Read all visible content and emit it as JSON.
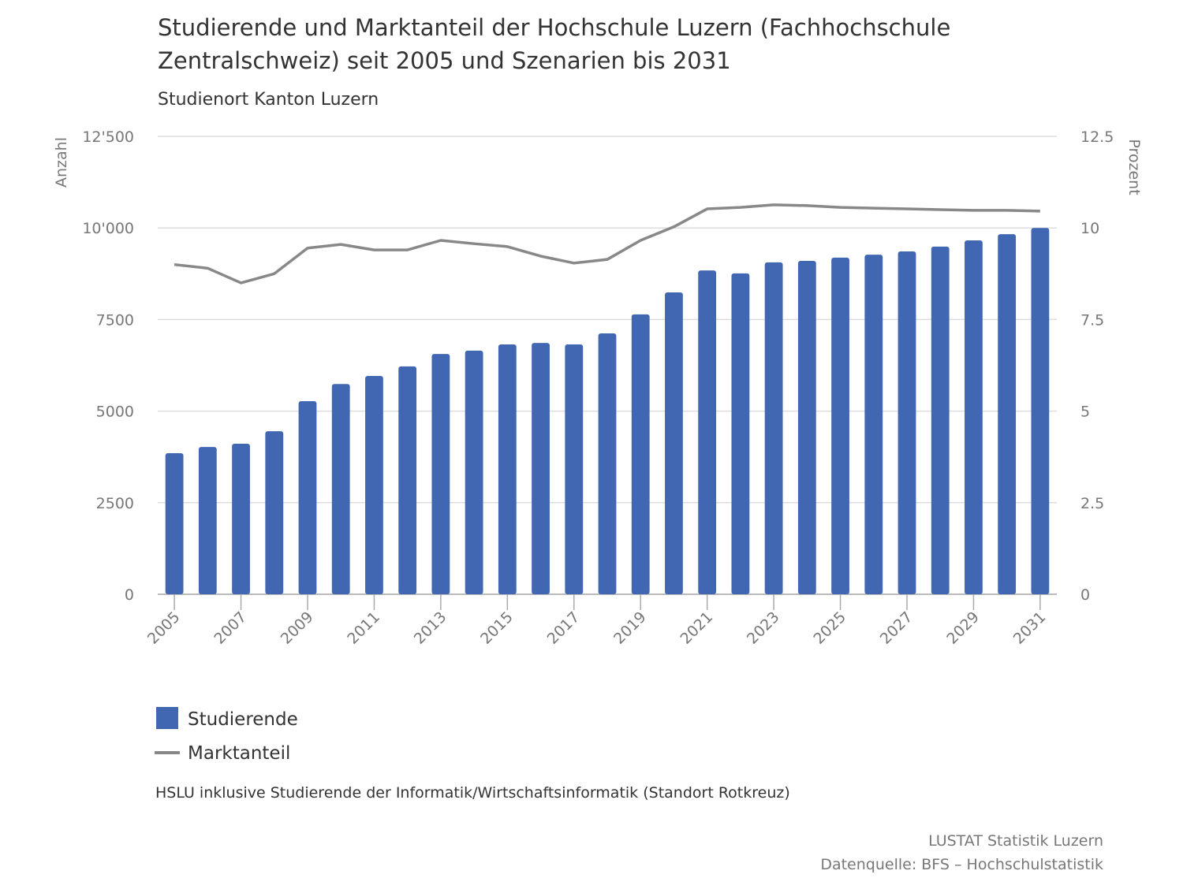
{
  "chart_data": {
    "type": "bar",
    "title": "Studierende und Marktanteil der Hochschule Luzern (Fachhochschule Zentralschweiz) seit 2005 und Szenarien bis 2031",
    "subtitle": "Studienort Kanton Luzern",
    "y_label": "Anzahl",
    "y2_label": "Prozent",
    "x": [
      2005,
      2006,
      2007,
      2008,
      2009,
      2010,
      2011,
      2012,
      2013,
      2014,
      2015,
      2016,
      2017,
      2018,
      2019,
      2020,
      2021,
      2022,
      2023,
      2024,
      2025,
      2026,
      2027,
      2028,
      2029,
      2030,
      2031
    ],
    "xlim": [
      2004.5,
      2031.5
    ],
    "xticks": [
      2005,
      2007,
      2009,
      2011,
      2013,
      2015,
      2017,
      2019,
      2021,
      2023,
      2025,
      2027,
      2029,
      2031
    ],
    "ylim": [
      0,
      12500
    ],
    "yticks": [
      0,
      2500,
      5000,
      7500,
      {
        "value": 10000,
        "label": "10'000"
      },
      {
        "value": 12500,
        "label": "12'500"
      }
    ],
    "y2lim": [
      0,
      12.5
    ],
    "y2ticks": [
      0,
      2.5,
      5,
      7.5,
      10,
      12.5
    ],
    "grid": true,
    "series": [
      {
        "name": "Studierende",
        "type": "bar",
        "color": "#4267b2",
        "values": [
          3850,
          4020,
          4110,
          4450,
          5270,
          5740,
          5960,
          6220,
          6560,
          6650,
          6820,
          6860,
          6820,
          7120,
          7640,
          8240,
          8840,
          8760,
          9060,
          9100,
          9190,
          9270,
          9360,
          9490,
          9660,
          9830,
          10000
        ]
      },
      {
        "name": "Marktanteil",
        "type": "line",
        "axis": "y2",
        "color": "#888888",
        "values": [
          9.0,
          8.9,
          8.5,
          8.75,
          9.45,
          9.55,
          9.4,
          9.4,
          9.66,
          9.57,
          9.49,
          9.23,
          9.04,
          9.14,
          9.66,
          10.03,
          10.52,
          10.56,
          10.63,
          10.61,
          10.56,
          10.54,
          10.52,
          10.5,
          10.48,
          10.48,
          10.46
        ]
      }
    ],
    "note": "HSLU inklusive Studierende der Informatik/Wirtschaftsinformatik (Standort Rotkreuz)",
    "source": [
      "LUSTAT Statistik Luzern",
      "Datenquelle: BFS – Hochschulstatistik"
    ]
  }
}
